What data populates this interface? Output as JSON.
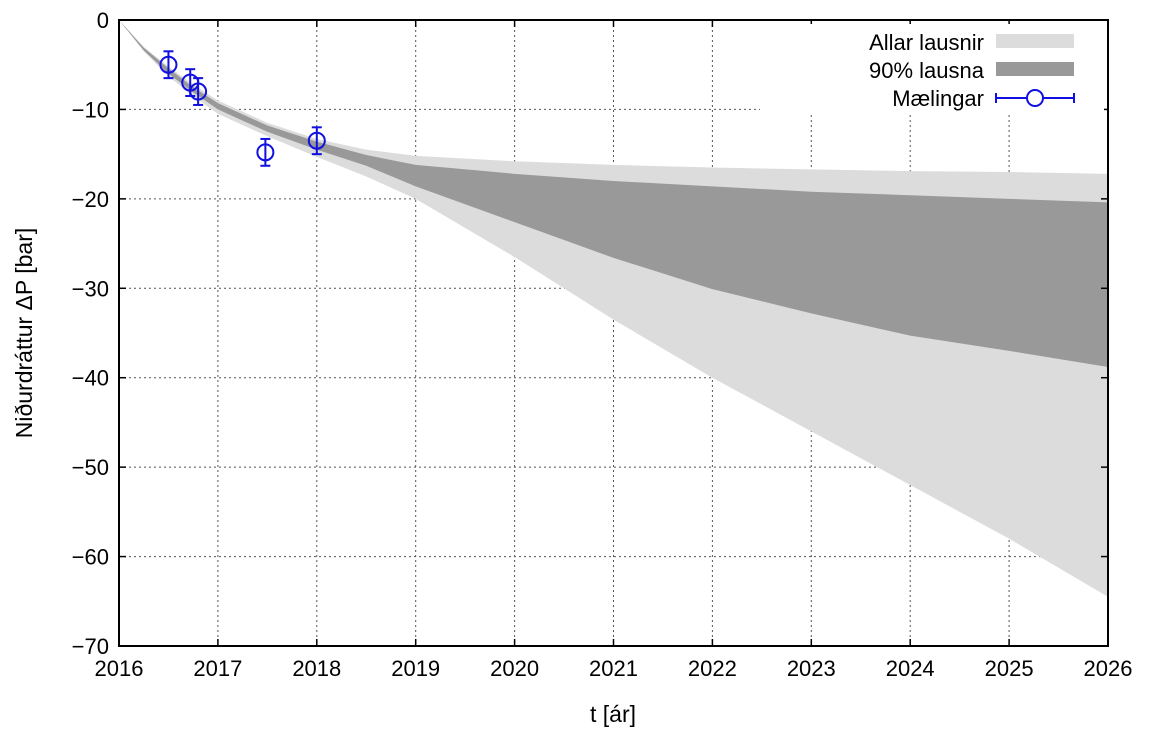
{
  "chart_data": {
    "type": "area",
    "xlabel": "t [ár]",
    "ylabel": "Niðurdráttur ΔP [bar]",
    "xlim": [
      2016,
      2026
    ],
    "ylim": [
      -70,
      0
    ],
    "xticks": [
      "2016",
      "2017",
      "2018",
      "2019",
      "2020",
      "2021",
      "2022",
      "2023",
      "2024",
      "2025",
      "2026"
    ],
    "yticks": [
      "0",
      "−10",
      "−20",
      "−30",
      "−40",
      "−50",
      "−60",
      "−70"
    ],
    "grid": true,
    "legend_position": "top-right",
    "colors": {
      "all_band": "#dcdcdc",
      "band_90": "#999999",
      "measurements": "#1010e0"
    },
    "series": [
      {
        "name": "Allar lausnir",
        "kind": "band",
        "x": [
          2016.0,
          2016.25,
          2016.5,
          2016.75,
          2017.0,
          2017.5,
          2018.0,
          2018.5,
          2019.0,
          2020.0,
          2021.0,
          2022.0,
          2023.0,
          2024.0,
          2025.0,
          2026.0
        ],
        "upper": [
          0,
          -3.0,
          -5.2,
          -7.2,
          -9.0,
          -11.5,
          -13.3,
          -14.5,
          -15.2,
          -15.8,
          -16.2,
          -16.5,
          -16.7,
          -16.9,
          -17.0,
          -17.2
        ],
        "lower": [
          0,
          -3.5,
          -6.3,
          -8.5,
          -10.5,
          -13.0,
          -15.3,
          -17.5,
          -20.0,
          -26.5,
          -33.5,
          -40.0,
          -46.0,
          -52.0,
          -58.0,
          -64.5
        ]
      },
      {
        "name": "90% lausna",
        "kind": "band",
        "x": [
          2016.0,
          2016.25,
          2016.5,
          2016.75,
          2017.0,
          2017.5,
          2018.0,
          2018.5,
          2019.0,
          2020.0,
          2021.0,
          2022.0,
          2023.0,
          2024.0,
          2025.0,
          2026.0
        ],
        "upper": [
          0,
          -3.1,
          -5.4,
          -7.5,
          -9.3,
          -11.8,
          -13.6,
          -15.1,
          -16.2,
          -17.2,
          -18.0,
          -18.6,
          -19.2,
          -19.6,
          -20.0,
          -20.4
        ],
        "lower": [
          0,
          -3.4,
          -6.0,
          -8.1,
          -10.0,
          -12.5,
          -14.5,
          -16.3,
          -18.6,
          -22.6,
          -26.6,
          -30.1,
          -32.8,
          -35.3,
          -37.0,
          -38.8
        ]
      },
      {
        "name": "Mælingar",
        "kind": "errorbar",
        "x": [
          2016.5,
          2016.72,
          2016.8,
          2017.48,
          2018.0
        ],
        "y": [
          -5.0,
          -7.0,
          -8.0,
          -14.8,
          -13.5
        ],
        "error": [
          1.5,
          1.5,
          1.5,
          1.5,
          1.5
        ]
      }
    ]
  }
}
